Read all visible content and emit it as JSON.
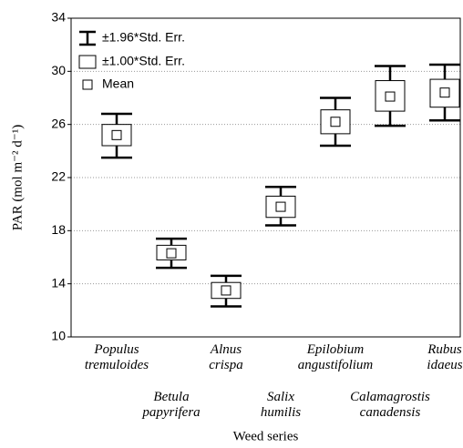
{
  "chart_data": {
    "type": "box",
    "xlabel": "Weed series",
    "ylabel": "PAR (mol m⁻² d⁻¹)",
    "categories": [
      [
        "Populus",
        "tremuloides"
      ],
      [
        "Betula",
        "papyrifera"
      ],
      [
        "Alnus",
        "crispa"
      ],
      [
        "Salix",
        "humilis"
      ],
      [
        "Epilobium",
        "angustifolium"
      ],
      [
        "Calamagrostis",
        "canadensis"
      ],
      [
        "Rubus",
        "idaeus"
      ]
    ],
    "series": [
      {
        "name": "±1.96*Std. Err.",
        "low": [
          23.5,
          15.2,
          12.3,
          18.4,
          24.4,
          25.9,
          26.3
        ],
        "high": [
          26.8,
          17.4,
          14.6,
          21.3,
          28.0,
          30.4,
          30.5
        ]
      },
      {
        "name": "±1.00*Std. Err.",
        "low": [
          24.4,
          15.8,
          12.9,
          19.0,
          25.3,
          27.0,
          27.3
        ],
        "high": [
          26.0,
          16.9,
          14.1,
          20.6,
          27.1,
          29.3,
          29.4
        ]
      },
      {
        "name": "Mean",
        "values": [
          25.2,
          16.3,
          13.5,
          19.8,
          26.2,
          28.1,
          28.4
        ]
      }
    ],
    "ylim": [
      10,
      34
    ],
    "yticks": [
      10,
      14,
      18,
      22,
      26,
      30,
      34
    ],
    "grid": true,
    "legend": "upper left",
    "color": "#000000"
  }
}
